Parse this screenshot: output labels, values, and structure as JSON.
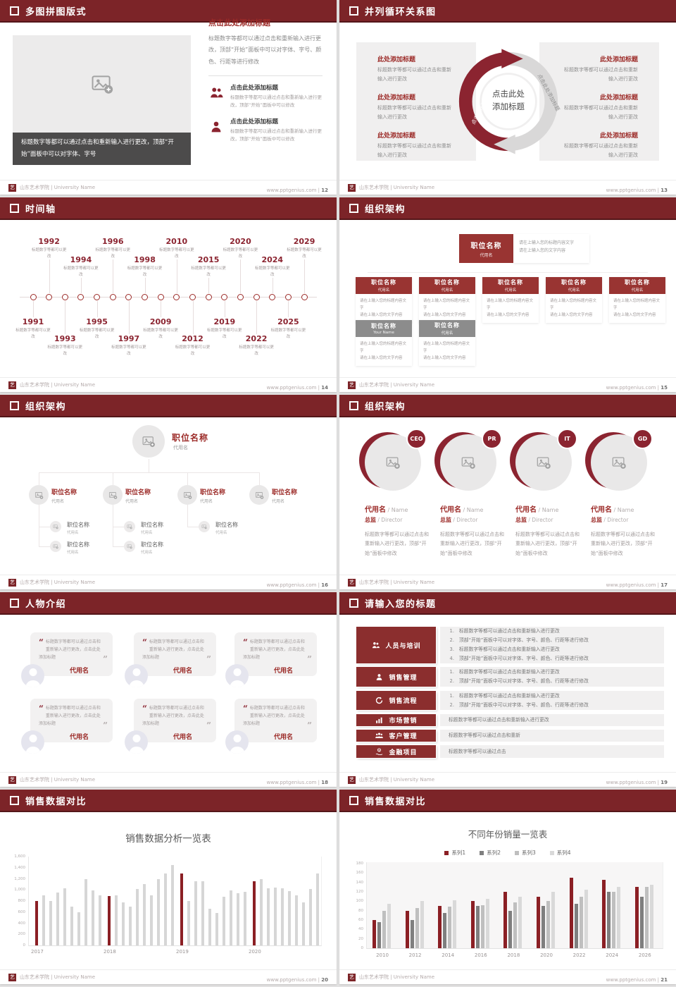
{
  "footer": {
    "org": "山东艺术学院 | University Name",
    "site": "www.pptgenius.com",
    "sep": " | "
  },
  "colors": {
    "header": "#7c2428",
    "accent": "#9c2b28",
    "deep_red": "#8b2430",
    "box_red": "#8b2e2e",
    "box_gray": "#8c8c8c",
    "chart_red": "#8b1f24",
    "chart_gray": "#d6d6d6"
  },
  "slides": {
    "s12": {
      "num": "12",
      "title": "多图拼图版式",
      "caption": "标题数字等都可以通过点击和重新输入进行更改，顶部“开始”面板中可以对字体、字号",
      "col_title": "点击此处添加标题",
      "col_body": "标题数字等都可以通过点击和重新输入进行更改，顶部“开始”面板中可以对字体、字号、颜色、行距等进行修改",
      "features": [
        {
          "title": "点击此处添加标题",
          "desc": "标题数字等都可以通过点击和重新输入进行更改，顶部“开始”面板中可以修改"
        },
        {
          "title": "点击此处添加标题",
          "desc": "标题数字等都可以通过点击和重新输入进行更改，顶部“开始”面板中可以修改"
        }
      ]
    },
    "s13": {
      "num": "13",
      "title": "并列循环关系图",
      "center_label": "点击此处添加标题",
      "arc_label_left": "点击此处添加标题",
      "arc_label_right": "点击此处添加标题",
      "left_items": [
        {
          "title": "此处添加标题",
          "desc": "标题数字等都可以通过点击和重新输入进行更改"
        },
        {
          "title": "此处添加标题",
          "desc": "标题数字等都可以通过点击和重新输入进行更改"
        },
        {
          "title": "此处添加标题",
          "desc": "标题数字等都可以通过点击和重新输入进行更改"
        }
      ],
      "right_items": [
        {
          "title": "此处添加标题",
          "desc": "标题数字等都可以通过点击和重新输入进行更改"
        },
        {
          "title": "此处添加标题",
          "desc": "标题数字等都可以通过点击和重新输入进行更改"
        },
        {
          "title": "此处添加标题",
          "desc": "标题数字等都可以通过点击和重新输入进行更改"
        }
      ]
    },
    "s14": {
      "num": "14",
      "title": "时间轴",
      "note": "标题数字等都可以更改",
      "years": [
        "1991",
        "1992",
        "1993",
        "1994",
        "1995",
        "1996",
        "1997",
        "1998",
        "2009",
        "2010",
        "2012",
        "2015",
        "2019",
        "2020",
        "2022",
        "2024",
        "2025",
        "2029"
      ]
    },
    "s15": {
      "num": "15",
      "title": "组织架构",
      "root": {
        "title": "职位名称",
        "sub": "代用名"
      },
      "root_note": [
        "请在上输入您的标题内容文字",
        "请在上输入您的文字内容"
      ],
      "body_lines": [
        "请在上输入您的标题内容文字",
        "请在上输入您的文字内容"
      ],
      "row1": [
        {
          "title": "职位名称",
          "sub": "代用名"
        },
        {
          "title": "职位名称",
          "sub": "代用名"
        },
        {
          "title": "职位名称",
          "sub": "代用名"
        },
        {
          "title": "职位名称",
          "sub": "代用名"
        },
        {
          "title": "职位名称",
          "sub": "代用名"
        }
      ],
      "row2": [
        {
          "title": "职位名称",
          "sub": "Your Name"
        },
        {
          "title": "职位名称",
          "sub": "代用名"
        }
      ]
    },
    "s16": {
      "num": "16",
      "title": "组织架构",
      "root": {
        "title": "职位名称",
        "sub": "代用名"
      },
      "nodes": [
        {
          "title": "职位名称",
          "sub": "代用名",
          "children": 2
        },
        {
          "title": "职位名称",
          "sub": "代用名",
          "children": 2
        },
        {
          "title": "职位名称",
          "sub": "代用名",
          "children": 1
        },
        {
          "title": "职位名称",
          "sub": "代用名",
          "children": 0
        }
      ],
      "child_label": {
        "title": "职位名称",
        "sub": "代用名"
      }
    },
    "s17": {
      "num": "17",
      "title": "组织架构",
      "sep": " / ",
      "body": "标题数字等都可以通过点击和重新输入进行更改，顶部“开始”面板中修改",
      "members": [
        {
          "badge": "CEO",
          "name": "代用名",
          "name_en": "Name",
          "role": "总监",
          "role_en": "Director"
        },
        {
          "badge": "PR",
          "name": "代用名",
          "name_en": "Name",
          "role": "总监",
          "role_en": "Director"
        },
        {
          "badge": "IT",
          "name": "代用名",
          "name_en": "Name",
          "role": "总监",
          "role_en": "Director"
        },
        {
          "badge": "GD",
          "name": "代用名",
          "name_en": "Name",
          "role": "总监",
          "role_en": "Director"
        }
      ]
    },
    "s18": {
      "num": "18",
      "title": "人物介绍",
      "open_quote": "“",
      "close_quote": "”",
      "quote": "标题数字等都可以通过点击和重新输入进行更改，点击此处添加标题",
      "name": "代用名",
      "count": 6
    },
    "s19": {
      "num": "19",
      "title": "请输入您的标题",
      "rows": [
        {
          "icon": "people-training-icon",
          "label": "人员与培训",
          "numbered": true,
          "lines": [
            "标题数字等都可以通过点击和重新输入进行更改",
            "顶部“开始”面板中可以对字体、字号、颜色、行距等进行修改",
            "标题数字等都可以通过点击和重新输入进行更改",
            "顶部“开始”面板中可以对字体、字号、颜色、行距等进行修改"
          ]
        },
        {
          "icon": "salesperson-icon",
          "label": "销售管理",
          "numbered": true,
          "lines": [
            "标题数字等都可以通过点击和重新输入进行更改",
            "顶部“开始”面板中可以对字体、字号、颜色、行距等进行修改"
          ]
        },
        {
          "icon": "process-cycle-icon",
          "label": "销售流程",
          "numbered": true,
          "lines": [
            "标题数字等都可以通过点击和重新输入进行更改",
            "顶部“开始”面板中可以对字体、字号、颜色、行距等进行修改"
          ]
        },
        {
          "icon": "bar-chart-icon",
          "label": "市场营销",
          "numbered": false,
          "lines": [
            "标题数字等都可以通过点击和重新输入进行更改"
          ]
        },
        {
          "icon": "customers-icon",
          "label": "客户管理",
          "numbered": false,
          "lines": [
            "标题数字等都可以通过点击和重新"
          ]
        },
        {
          "icon": "finance-icon",
          "label": "金融项目",
          "numbered": false,
          "lines": [
            "标题数字等都可以通过点击"
          ]
        }
      ]
    },
    "s20": {
      "num": "20",
      "title": "销售数据对比",
      "chart": {
        "type": "bar",
        "title": "销售数据分析一览表",
        "ylim": [
          0,
          1600
        ],
        "ytick_step": 200,
        "highlight_color": "#8b1f24",
        "bar_color": "#d6d6d6",
        "groups": [
          {
            "year": "2017",
            "values": [
              800,
              900,
              800,
              950,
              1030,
              700,
              600,
              1200,
              990,
              900
            ]
          },
          {
            "year": "2018",
            "values": [
              890,
              900,
              780,
              700,
              1010,
              1100,
              900,
              1200,
              1300,
              1450
            ]
          },
          {
            "year": "2019",
            "values": [
              1290,
              800,
              1150,
              1160,
              660,
              580,
              870,
              990,
              940,
              960
            ]
          },
          {
            "year": "2020",
            "values": [
              1150,
              1190,
              1030,
              1040,
              1030,
              980,
              900,
              780,
              1020,
              1300
            ]
          }
        ]
      }
    },
    "s21": {
      "num": "21",
      "title": "销售数据对比",
      "chart": {
        "type": "grouped-bar",
        "title": "不同年份销量一览表",
        "ylim": [
          0,
          180
        ],
        "ytick_step": 20,
        "legend": [
          "系列1",
          "系列2",
          "系列3",
          "系列4"
        ],
        "series_colors": [
          "#8b1f24",
          "#7f7f7f",
          "#bfbfbf",
          "#d9d9d9"
        ],
        "categories": [
          "2010",
          "2012",
          "2014",
          "2016",
          "2018",
          "2020",
          "2022",
          "2024",
          "2026"
        ],
        "values": [
          [
            60,
            55,
            80,
            95
          ],
          [
            80,
            60,
            85,
            100
          ],
          [
            90,
            75,
            88,
            102
          ],
          [
            100,
            90,
            92,
            105
          ],
          [
            120,
            80,
            97,
            110
          ],
          [
            110,
            90,
            100,
            120
          ],
          [
            150,
            95,
            110,
            125
          ],
          [
            145,
            120,
            120,
            130
          ],
          [
            130,
            110,
            130,
            135
          ]
        ]
      }
    }
  }
}
